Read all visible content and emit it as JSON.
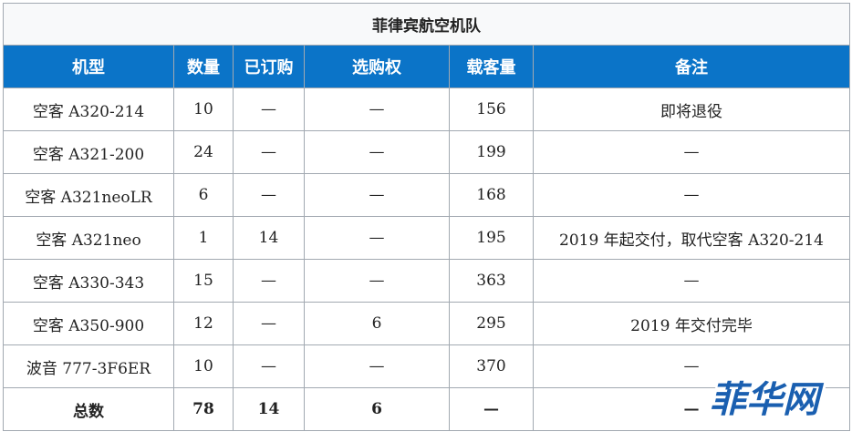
{
  "table": {
    "caption": "菲律宾航空机队",
    "headers": [
      "机型",
      "数量",
      "已订购",
      "选购权",
      "载客量",
      "备注"
    ],
    "rows": [
      [
        "空客 A320-214",
        "10",
        "—",
        "—",
        "156",
        "即将退役"
      ],
      [
        "空客 A321-200",
        "24",
        "—",
        "—",
        "199",
        "—"
      ],
      [
        "空客 A321neoLR",
        "6",
        "—",
        "—",
        "168",
        "—"
      ],
      [
        "空客 A321neo",
        "1",
        "14",
        "—",
        "195",
        "2019 年起交付，取代空客 A320-214"
      ],
      [
        "空客 A330-343",
        "15",
        "—",
        "—",
        "363",
        "—"
      ],
      [
        "空客 A350-900",
        "12",
        "—",
        "6",
        "295",
        "2019 年交付完毕"
      ],
      [
        "波音 777-3F6ER",
        "10",
        "—",
        "—",
        "370",
        "—"
      ]
    ],
    "total": [
      "总数",
      "78",
      "14",
      "6",
      "—",
      "—"
    ]
  },
  "watermark": {
    "text": "菲华网",
    "fill_color": "#1a5fb0",
    "outline_color": "#ffffff"
  },
  "colors": {
    "header_bg": "#0b74c8",
    "header_text": "#ffffff",
    "caption_bg": "#f8f9fa",
    "border": "#a2a9b1"
  }
}
